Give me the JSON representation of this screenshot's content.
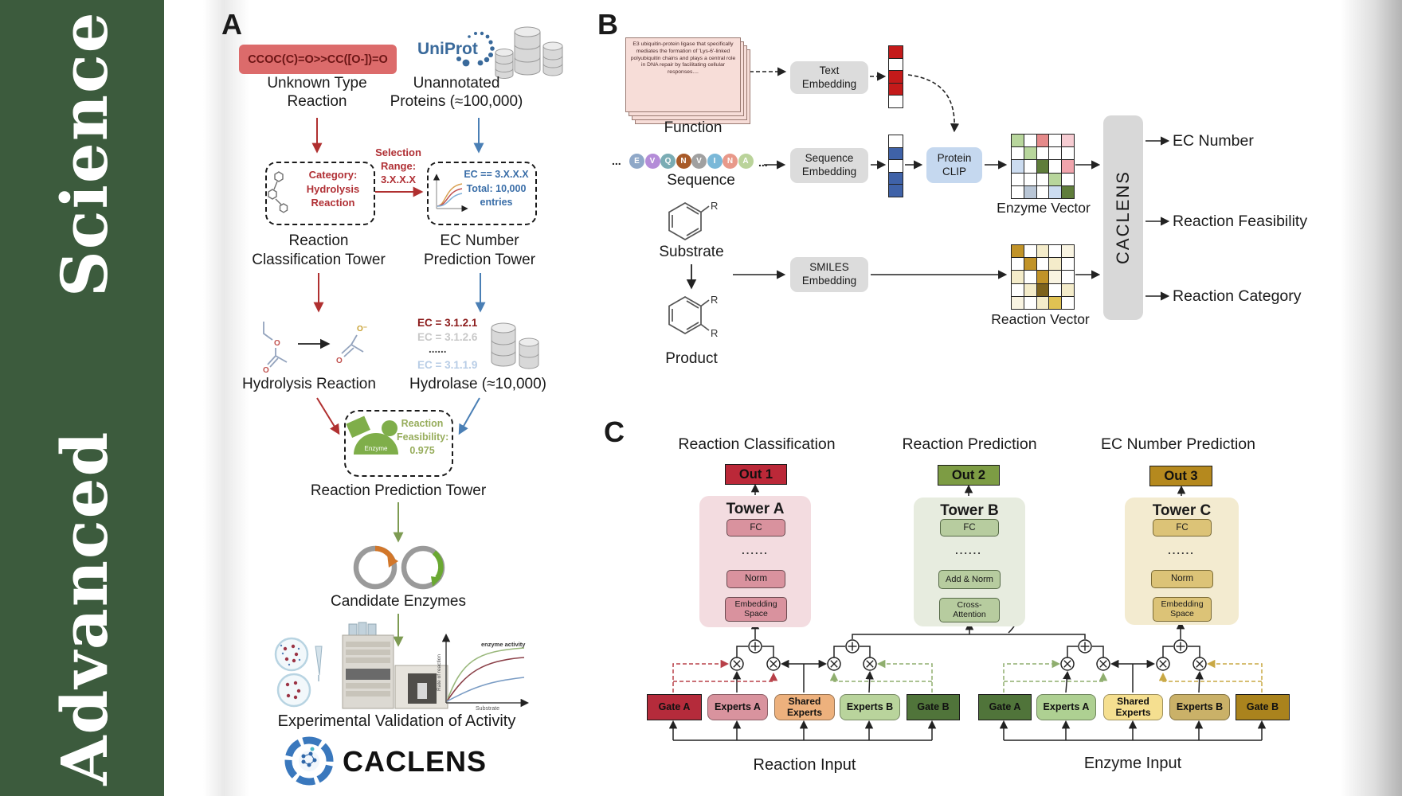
{
  "sidebar": {
    "journal": "Advanced   Science",
    "bg": "#3c5b3d"
  },
  "panel_a": {
    "label": "A",
    "smiles": "CCOC(C)=O>>CC([O-])=O",
    "unknown_type": "Unknown Type\nReaction",
    "uniprot": "UniProt",
    "unannotated": "Unannotated\nProteins (≈100,000)",
    "category": "Category:\nHydrolysis\nReaction",
    "selection": "Selection\nRange:\n3.X.X.X",
    "ec_filter": "EC == 3.X.X.X\nTotal: 10,000\nentries",
    "classification_tower": "Reaction\nClassification Tower",
    "ec_tower": "EC Number\nPrediction Tower",
    "hydrolysis": "Hydrolysis Reaction",
    "ec_list": [
      "EC = 3.1.2.1",
      "EC = 3.1.2.6",
      "......",
      "EC = 3.1.1.9"
    ],
    "hydrolase": "Hydrolase (≈10,000)",
    "enzyme": "Enzyme",
    "feasibility": "Reaction\nFeasibility:\n0.975",
    "prediction_tower": "Reaction Prediction Tower",
    "candidates": "Candidate Enzymes",
    "graph": {
      "annotation": "enzyme activity",
      "ylabel": "Rate of reaction",
      "xlabel": "Substrate"
    },
    "validation": "Experimental Validation of Activity",
    "brand": "CACLENS"
  },
  "panel_b": {
    "label": "B",
    "function_text": "E3 ubiquitin-protein ligase that specifically mediates the formation of 'Lys-6'-linked polyubiquitin chains and plays a central role in DNA repair by facilitating cellular responses....",
    "function": "Function",
    "ellipsis": "...",
    "sequence_letters": [
      "E",
      "V",
      "Q",
      "N",
      "V",
      "I",
      "N",
      "A"
    ],
    "sequence_colors": [
      "#8fa8c8",
      "#b48cd8",
      "#7aacb4",
      "#a85a28",
      "#a0a0a0",
      "#7ab8d8",
      "#e8998a",
      "#bad39a"
    ],
    "sequence": "Sequence",
    "substrate": "Substrate",
    "product": "Product",
    "r": "R",
    "text_embedding": "Text\nEmbedding",
    "sequence_embedding": "Sequence\nEmbedding",
    "smiles_embedding": "SMILES\nEmbedding",
    "protein_clip": "Protein\nCLIP",
    "text_vector": [
      "#c41a1a",
      "#ffffff",
      "#c41a1a",
      "#c41a1a",
      "#ffffff"
    ],
    "sequence_vector": [
      "#ffffff",
      "#3f62a8",
      "#ffffff",
      "#3f62a8",
      "#3f62a8"
    ],
    "enzyme_matrix": [
      [
        "#b8d69c",
        "#ffffff",
        "#e58a8a",
        "#ffffff",
        "#f6ccd2"
      ],
      [
        "#ffffff",
        "#b8d69c",
        "#ffffff",
        "#ffffff",
        "#ffffff"
      ],
      [
        "#ccdcf0",
        "#ffffff",
        "#5f7d3b",
        "#ffffff",
        "#f0a4ac"
      ],
      [
        "#ffffff",
        "#ffffff",
        "#ffffff",
        "#b8d69c",
        "#ffffff"
      ],
      [
        "#ffffff",
        "#b9c6d6",
        "#ffffff",
        "#ccdcf0",
        "#5f7d3b"
      ]
    ],
    "reaction_matrix": [
      [
        "#c19328",
        "#ffffff",
        "#f4ecca",
        "#ffffff",
        "#f9f4e2"
      ],
      [
        "#ffffff",
        "#c19328",
        "#ffffff",
        "#f4ecca",
        "#ffffff"
      ],
      [
        "#f4ecca",
        "#ffffff",
        "#c19328",
        "#f9f4e2",
        "#ffffff"
      ],
      [
        "#ffffff",
        "#f4ecca",
        "#7d621c",
        "#ffffff",
        "#f4ecca"
      ],
      [
        "#f9f4e2",
        "#ffffff",
        "#f4ecca",
        "#e0c253",
        "#ffffff"
      ]
    ],
    "enzyme_vector": "Enzyme Vector",
    "reaction_vector": "Reaction Vector",
    "caclens": "CACLENS",
    "outputs": [
      "EC Number",
      "Reaction Feasibility",
      "Reaction Category"
    ]
  },
  "panel_c": {
    "label": "C",
    "titles": [
      "Reaction Classification",
      "Reaction Prediction",
      "EC Number Prediction"
    ],
    "outs": [
      "Out 1",
      "Out 2",
      "Out 3"
    ],
    "towers": [
      {
        "name": "Tower A",
        "fc": "FC",
        "dots": "......",
        "mid": "Norm",
        "base": "Embedding\nSpace"
      },
      {
        "name": "Tower B",
        "fc": "FC",
        "dots": "......",
        "mid": "Add & Norm",
        "base": "Cross-\nAttention"
      },
      {
        "name": "Tower C",
        "fc": "FC",
        "dots": "......",
        "mid": "Norm",
        "base": "Embedding\nSpace"
      }
    ],
    "reaction_group": {
      "gate_a": "Gate A",
      "experts_a": "Experts A",
      "shared": "Shared\nExperts",
      "experts_b": "Experts B",
      "gate_b": "Gate B",
      "label": "Reaction Input"
    },
    "enzyme_group": {
      "gate_a": "Gate A",
      "experts_a": "Experts A",
      "shared": "Shared\nExperts",
      "experts_b": "Experts B",
      "gate_b": "Gate B",
      "label": "Enzyme Input"
    }
  },
  "colors": {
    "sidebar_green": "#3c5b3d",
    "smiles_box": "#dc6b6b",
    "uniprot_blue": "#3a6a9b",
    "arrow_red": "#b03030",
    "arrow_blue": "#4a7fb5",
    "arrow_green": "#7d9b52",
    "ec_red": "#8b1a1a",
    "ec_gray": "#c8c8c8",
    "ec_lightblue": "#b8cde6",
    "feasibility_green": "#97ad5c",
    "protein_clip": "#c5d8ef",
    "tower_a": "#f3dce0",
    "tower_b": "#e7ecdf",
    "tower_c": "#f3ebd0",
    "out1": "#bb2838",
    "out2": "#7d9c44",
    "out3": "#b5891e",
    "gate_red": "#b52b3b",
    "gate_green": "#50743a",
    "gate_gold": "#aa831d",
    "experts_a_r": "#d9939e",
    "shared_r": "#edb17d",
    "experts_b_r": "#b9d49c",
    "experts_a_e": "#aed092",
    "shared_e": "#f5df90",
    "experts_b_e": "#cab168"
  }
}
